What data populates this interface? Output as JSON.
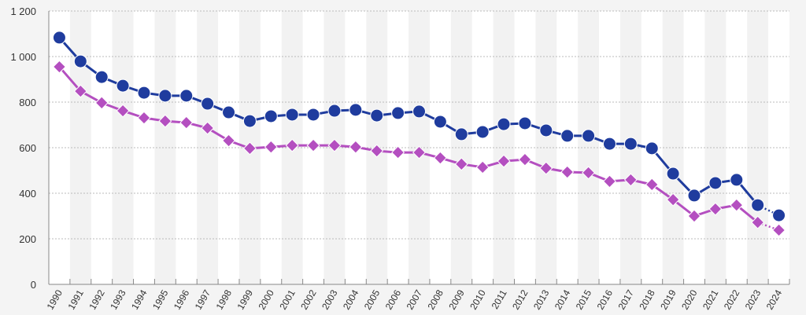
{
  "chart_data": {
    "type": "line",
    "title": "",
    "xlabel": "",
    "ylabel": "",
    "ylim": [
      0,
      1200
    ],
    "yticks": [
      "0",
      "200",
      "400",
      "600",
      "800",
      "1 000",
      "1 200"
    ],
    "ytick_values": [
      0,
      200,
      400,
      600,
      800,
      1000,
      1200
    ],
    "grid": "horizontal dashed",
    "x": [
      "1990",
      "1991",
      "1992",
      "1993",
      "1994",
      "1995",
      "1996",
      "1997",
      "1998",
      "1999",
      "2000",
      "2001",
      "2002",
      "2003",
      "2004",
      "2005",
      "2006",
      "2007",
      "2008",
      "2009",
      "2010",
      "2011",
      "2012",
      "2013",
      "2014",
      "2015",
      "2016",
      "2017",
      "2018",
      "2019",
      "2020",
      "2021",
      "2022",
      "2023",
      "2024"
    ],
    "dotted_last_segment": true,
    "series": [
      {
        "name": "series-circle",
        "marker": "circle",
        "color": "#1f3c9e",
        "values": [
          1083,
          979,
          910,
          872,
          841,
          828,
          828,
          793,
          755,
          717,
          738,
          745,
          745,
          762,
          766,
          741,
          752,
          759,
          714,
          659,
          669,
          703,
          707,
          676,
          652,
          652,
          617,
          617,
          597,
          486,
          390,
          445,
          459,
          348,
          303
        ]
      },
      {
        "name": "series-diamond",
        "marker": "diamond",
        "color": "#b44fc0",
        "values": [
          955,
          848,
          797,
          762,
          731,
          717,
          710,
          686,
          631,
          597,
          603,
          610,
          610,
          610,
          603,
          586,
          579,
          579,
          555,
          528,
          514,
          541,
          548,
          510,
          493,
          490,
          452,
          459,
          438,
          372,
          300,
          331,
          348,
          272,
          238
        ]
      }
    ]
  }
}
